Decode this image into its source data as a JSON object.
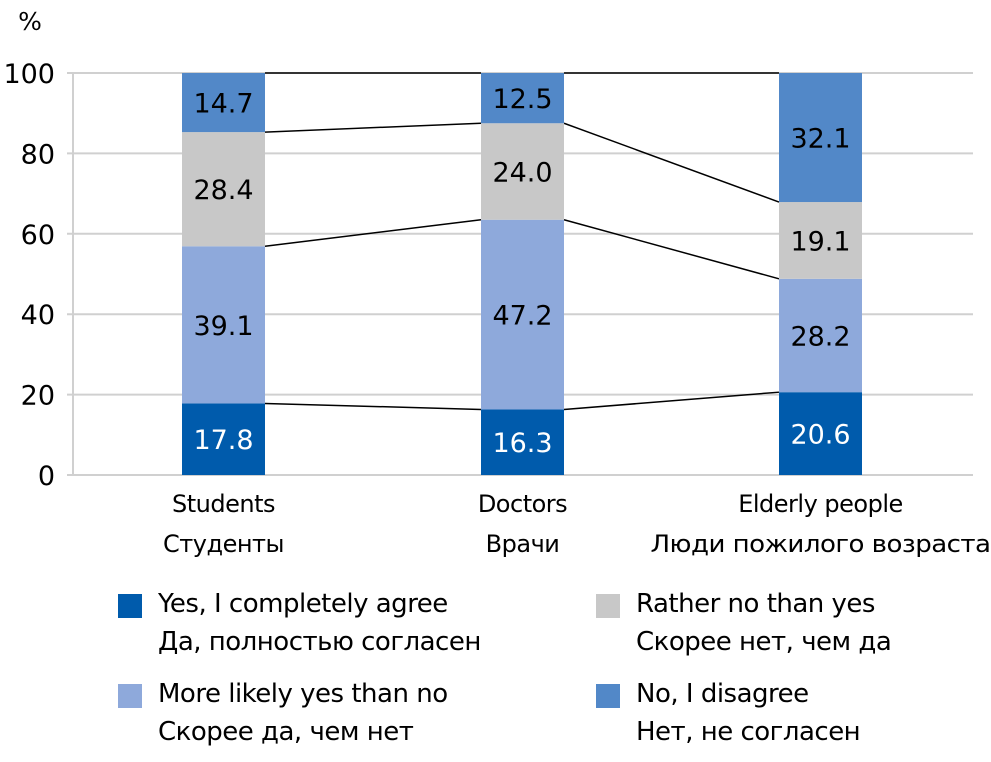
{
  "chart_data": {
    "type": "bar",
    "stacked": true,
    "unit_label": "%",
    "ylim": [
      0,
      100
    ],
    "yticks": [
      "0",
      "20",
      "40",
      "60",
      "80",
      "100"
    ],
    "grid": true,
    "categories": [
      {
        "en": "Students",
        "ru": "Студенты"
      },
      {
        "en": "Doctors",
        "ru": "Врачи"
      },
      {
        "en": "Elderly people",
        "ru": "Люди пожилого возраста"
      }
    ],
    "series": [
      {
        "name_en": "Yes, I completely agree",
        "name_ru": "Да, полностью согласен",
        "color": "#005BAC",
        "text_color": "#ffffff",
        "values": [
          17.8,
          16.3,
          20.6
        ],
        "labels": [
          "17.8",
          "16.3",
          "20.6"
        ]
      },
      {
        "name_en": "More likely yes than no",
        "name_ru": "Скорее да, чем нет",
        "color": "#8EA9DB",
        "text_color": "#000000",
        "values": [
          39.1,
          47.2,
          28.2
        ],
        "labels": [
          "39.1",
          "47.2",
          "28.2"
        ]
      },
      {
        "name_en": "Rather no than yes",
        "name_ru": "Скорее нет, чем да",
        "color": "#C8C8C8",
        "text_color": "#000000",
        "values": [
          28.4,
          24.0,
          19.1
        ],
        "labels": [
          "28.4",
          "24.0",
          "19.1"
        ]
      },
      {
        "name_en": "No, I disagree",
        "name_ru": "Нет, не согласен",
        "color": "#5288C8",
        "text_color": "#000000",
        "values": [
          14.7,
          12.5,
          32.1
        ],
        "labels": [
          "14.7",
          "12.5",
          "32.1"
        ]
      }
    ],
    "series_lines": true,
    "legend_position": "bottom"
  }
}
